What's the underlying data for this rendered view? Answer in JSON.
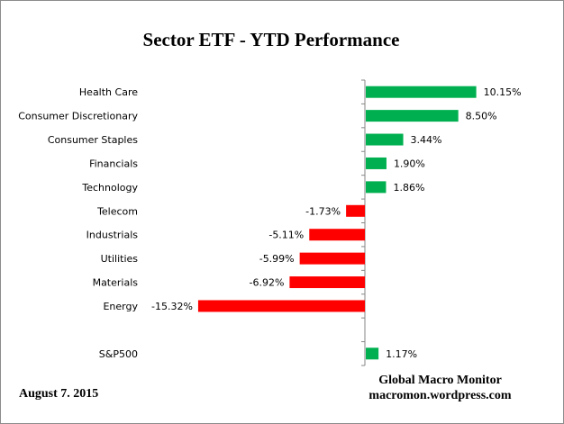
{
  "chart_data": {
    "type": "bar",
    "orientation": "horizontal",
    "title": "Sector ETF - YTD  Performance",
    "categories": [
      "Health Care",
      "Consumer Discretionary",
      "Consumer Staples",
      "Financials",
      "Technology",
      "Telecom",
      "Industrials",
      "Utilities",
      "Materials",
      "Energy",
      "",
      "S&P500"
    ],
    "values": [
      10.15,
      8.5,
      3.44,
      1.9,
      1.86,
      -1.73,
      -5.11,
      -5.99,
      -6.92,
      -15.32,
      null,
      1.17
    ],
    "data_labels": [
      "10.15%",
      "8.50%",
      "3.44%",
      "1.90%",
      "1.86%",
      "-1.73%",
      "-5.11%",
      "-5.99%",
      "-6.92%",
      "-15.32%",
      "",
      "1.17%"
    ],
    "colors": {
      "positive": "#00b050",
      "negative": "#ff0000",
      "axis": "#868686"
    },
    "grid": false,
    "legend": "none"
  },
  "footer": {
    "date": "August 7.  2015",
    "credit_line1": "Global Macro Monitor",
    "credit_line2": "macromon.wordpress.com"
  }
}
